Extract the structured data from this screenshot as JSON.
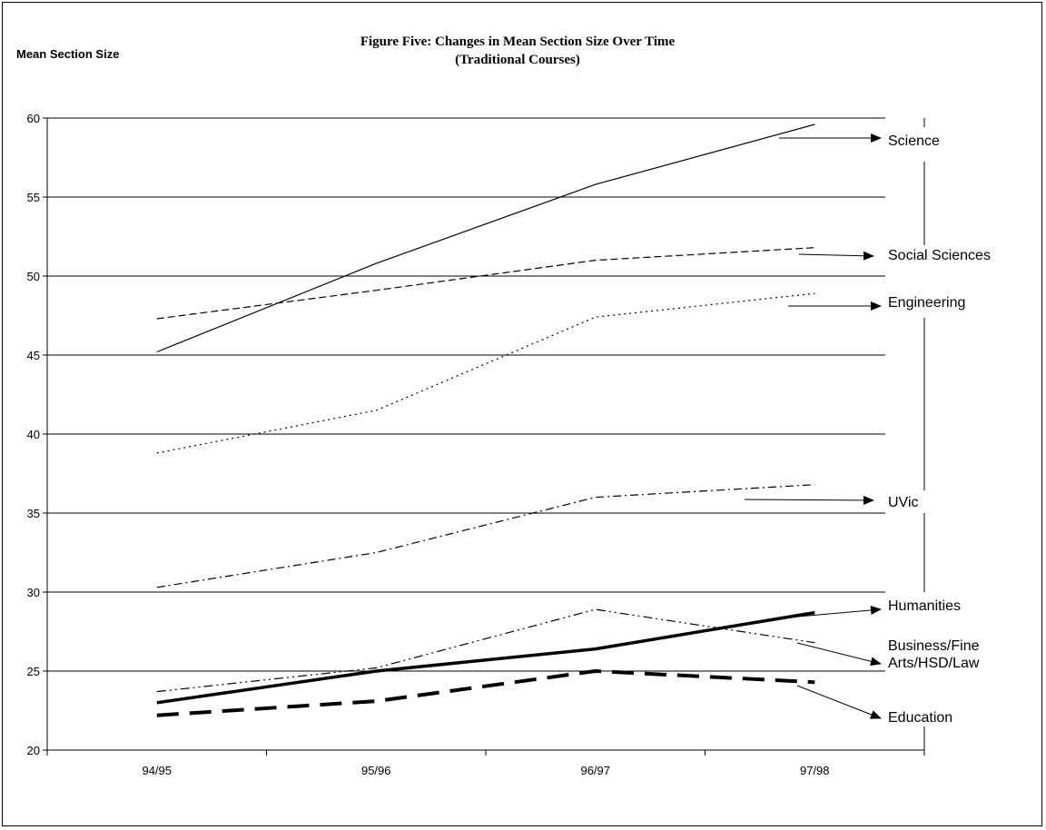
{
  "chart_data": {
    "type": "line",
    "title": "Figure Five: Changes in Mean Section Size Over Time",
    "subtitle": "(Traditional Courses)",
    "ylabel": "Mean Section Size",
    "xlabel": "",
    "categories": [
      "94/95",
      "95/96",
      "96/97",
      "97/98"
    ],
    "ylim": [
      20,
      60
    ],
    "yticks": [
      20,
      25,
      30,
      35,
      40,
      45,
      50,
      55,
      60
    ],
    "grid": true,
    "series": [
      {
        "name": "Science",
        "values": [
          45.2,
          50.8,
          55.8,
          59.6
        ],
        "style": "solid",
        "width": 1.2,
        "labelLines": [
          "Science"
        ]
      },
      {
        "name": "Social Sciences",
        "values": [
          47.3,
          49.1,
          51.0,
          51.8
        ],
        "style": "dash",
        "width": 1.2,
        "labelLines": [
          "Social Sciences"
        ]
      },
      {
        "name": "Engineering",
        "values": [
          38.8,
          41.5,
          47.4,
          48.9
        ],
        "style": "dot",
        "width": 1.2,
        "labelLines": [
          "Engineering"
        ]
      },
      {
        "name": "UVic",
        "values": [
          30.3,
          32.5,
          36.0,
          36.8
        ],
        "style": "dashdot",
        "width": 1.2,
        "labelLines": [
          "UVic"
        ]
      },
      {
        "name": "Humanities",
        "values": [
          23.0,
          25.0,
          26.4,
          28.7
        ],
        "style": "solid",
        "width": 3.5,
        "labelLines": [
          "Humanities"
        ]
      },
      {
        "name": "Business/Fine Arts/HSD/Law",
        "values": [
          23.7,
          25.2,
          28.9,
          26.8
        ],
        "style": "dashdotdot",
        "width": 1.2,
        "labelLines": [
          "Business/Fine",
          "Arts/HSD/Law"
        ]
      },
      {
        "name": "Education",
        "values": [
          22.2,
          23.1,
          25.0,
          24.3
        ],
        "style": "longdash",
        "width": 4,
        "labelLines": [
          "Education"
        ]
      }
    ]
  }
}
